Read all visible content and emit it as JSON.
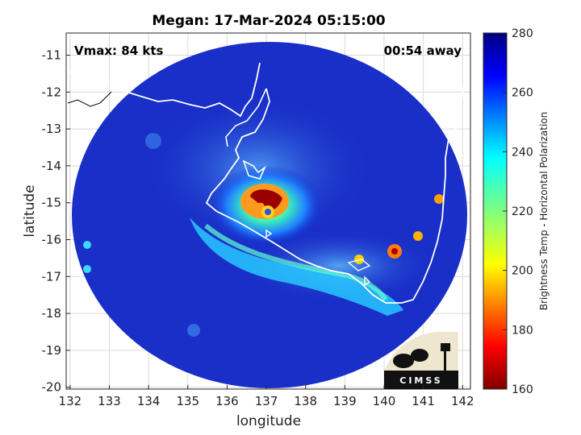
{
  "title": "Megan: 17-Mar-2024 05:15:00",
  "annotations": {
    "vmax": "Vmax: 84 kts",
    "eta": "00:54 away"
  },
  "logo_text": "CIMSS",
  "chart_data": {
    "type": "heatmap",
    "title": "Megan: 17-Mar-2024 05:15:00",
    "xlabel": "longitude",
    "ylabel": "latitude",
    "xlim": [
      131.9,
      142.2
    ],
    "ylim": [
      -20.05,
      -10.4
    ],
    "x_ticks": [
      "132",
      "133",
      "134",
      "135",
      "136",
      "137",
      "138",
      "139",
      "140",
      "141",
      "142"
    ],
    "y_ticks": [
      "-11",
      "-12",
      "-13",
      "-14",
      "-15",
      "-16",
      "-17",
      "-18",
      "-19",
      "-20"
    ],
    "grid": true,
    "colorbar": {
      "label": "Brightness Temp - Horizontal Polarization",
      "range": [
        160,
        280
      ],
      "ticks": [
        "280",
        "260",
        "240",
        "220",
        "200",
        "180",
        "160"
      ],
      "colormap": "jet"
    },
    "swath": {
      "center_lon": 137.0,
      "center_lat": -15.15,
      "radius_lon": 5.0,
      "radius_lat": 4.6
    },
    "storm_center": {
      "lon": 137.0,
      "lat": -15.0
    },
    "max_wind_kts": 84
  },
  "colors": {
    "background_cold": "#1428b4",
    "coastline": "#ffffff",
    "grid": "#d9d9d9"
  }
}
